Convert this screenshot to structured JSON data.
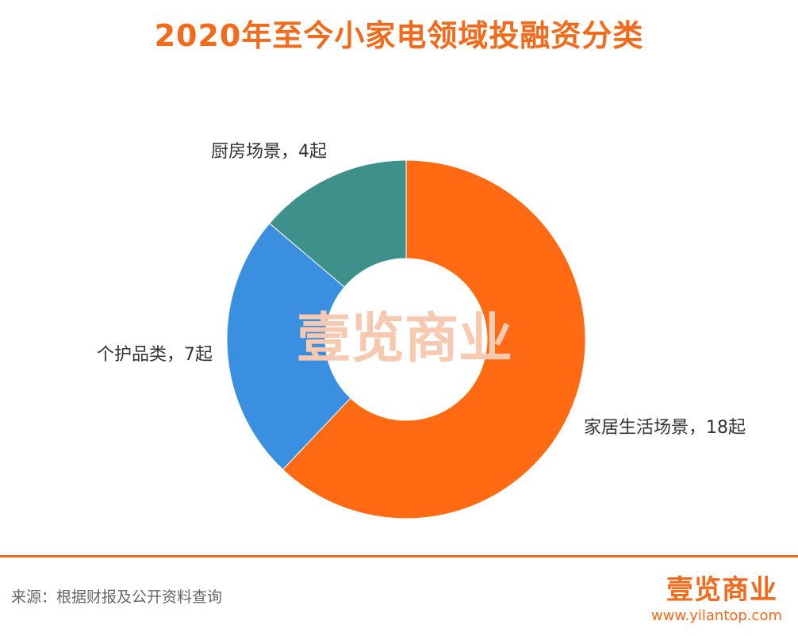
{
  "chart_data": {
    "type": "pie",
    "title": "2020年至今小家电领域投融资分类",
    "slices": [
      {
        "name": "家居生活场景",
        "value": 18,
        "unit": "起",
        "label": "家居生活场景，18起",
        "color": "#FF6A13"
      },
      {
        "name": "个护品类",
        "value": 7,
        "unit": "起",
        "label": "个护品类，7起",
        "color": "#3B8FE0"
      },
      {
        "name": "厨房场景",
        "value": 4,
        "unit": "起",
        "label": "厨房场景，4起",
        "color": "#3E908A"
      }
    ],
    "donut": true,
    "start": "12 o'clock",
    "direction": "clockwise"
  },
  "watermark": "壹览商业",
  "footer": {
    "source": "来源：根据财报及公开资料查询",
    "brand": "壹览商业",
    "url": "www.yilantop.com"
  },
  "colors": {
    "accent": "#F26B1D",
    "background": "#FFFFFF"
  }
}
